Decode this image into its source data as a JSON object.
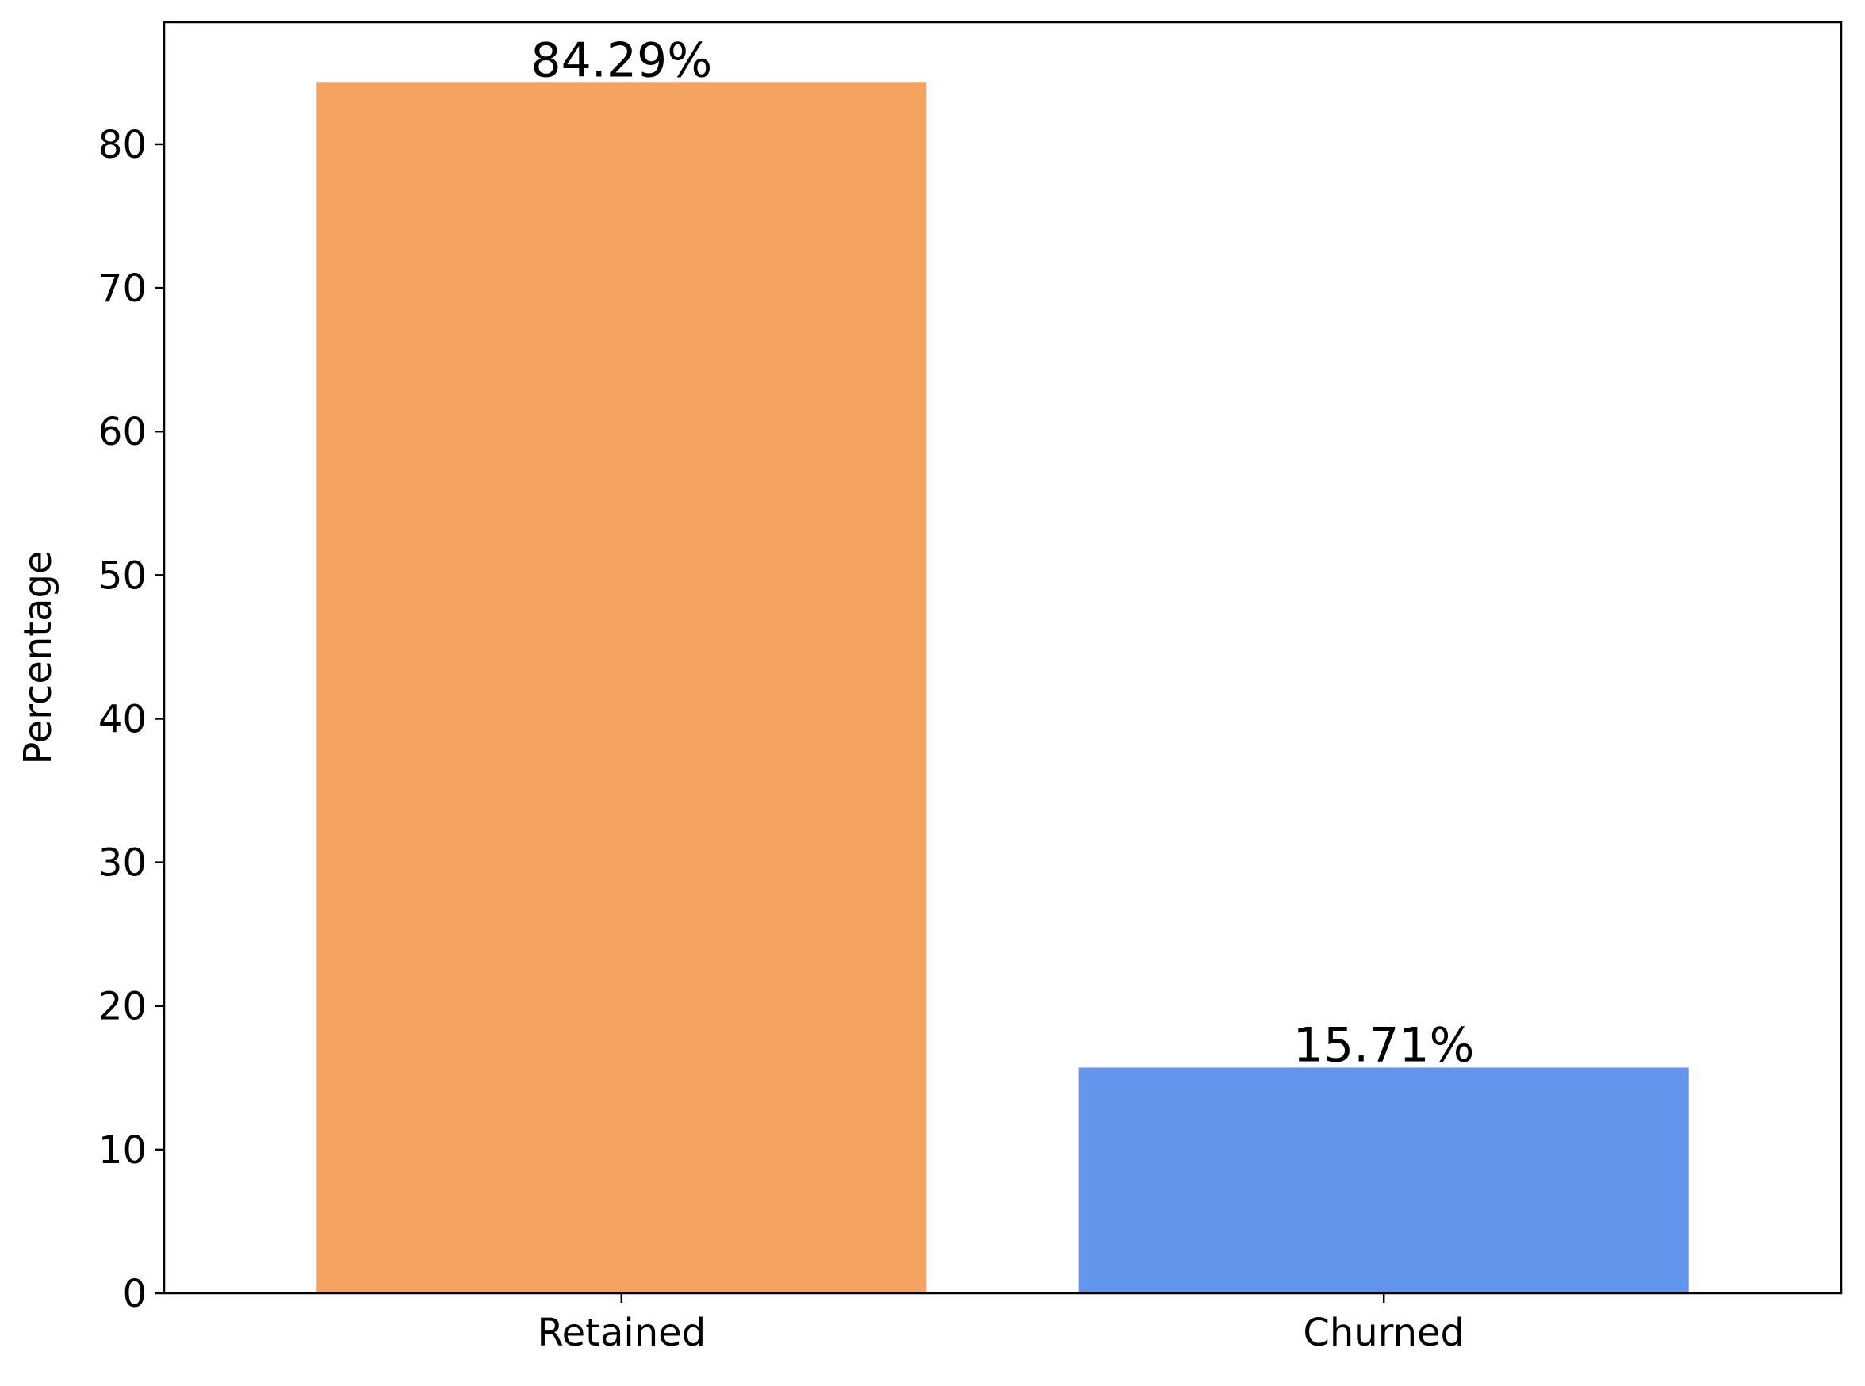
{
  "chart_data": {
    "type": "bar",
    "title": "",
    "xlabel": "",
    "ylabel": "Percentage",
    "categories": [
      "Retained",
      "Churned"
    ],
    "values": [
      84.29,
      15.71
    ],
    "data_labels": [
      "84.29%",
      "15.71%"
    ],
    "colors": [
      "#F4A460",
      "#6495ED"
    ],
    "ylim": [
      0,
      88.5
    ],
    "yticks": [
      0,
      10,
      20,
      30,
      40,
      50,
      60,
      70,
      80
    ],
    "grid": false,
    "legend": "none"
  }
}
